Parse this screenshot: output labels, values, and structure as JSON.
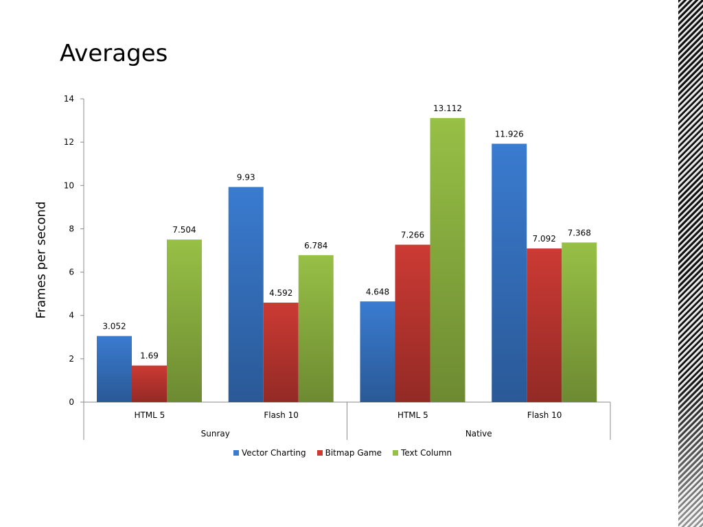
{
  "slide": {
    "title": "Averages"
  },
  "chart_data": {
    "type": "bar",
    "title": "",
    "xlabel": "",
    "ylabel": "Frames per second",
    "ylim": [
      0,
      14
    ],
    "yticks": [
      0,
      2,
      4,
      6,
      8,
      10,
      12,
      14
    ],
    "categories": [
      "HTML 5",
      "Flash 10",
      "HTML 5",
      "Flash 10"
    ],
    "groups": [
      {
        "label": "Sunray",
        "span": 2
      },
      {
        "label": "Native",
        "span": 2
      }
    ],
    "series": [
      {
        "name": "Vector Charting",
        "color": "#3a7bd0",
        "values": [
          3.052,
          9.93,
          4.648,
          11.926
        ],
        "labels": [
          "3.052",
          "9.93",
          "4.648",
          "11.926"
        ]
      },
      {
        "name": "Bitmap Game",
        "color": "#cc3a34",
        "values": [
          1.69,
          4.592,
          7.266,
          7.092
        ],
        "labels": [
          "1.69",
          "4.592",
          "7.266",
          "7.092"
        ]
      },
      {
        "name": "Text Column",
        "color": "#97c046",
        "values": [
          7.504,
          6.784,
          13.112,
          7.368
        ],
        "labels": [
          "7.504",
          "6.784",
          "13.112",
          "7.368"
        ]
      }
    ],
    "legend_position": "bottom",
    "grid": false
  }
}
